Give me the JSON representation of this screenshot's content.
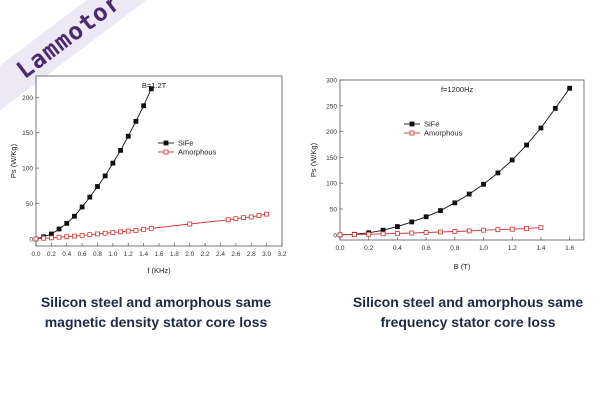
{
  "brand": {
    "watermark": "Lammotor",
    "color": "#4a2c6e"
  },
  "captions": {
    "left": "Silicon steel and amorphous same magnetic density stator core loss",
    "right": "Silicon steel and amorphous same frequency stator core loss"
  },
  "chart_data": [
    {
      "type": "line",
      "title": "B=1.2T",
      "xlabel": "f  (KHz)",
      "ylabel": "Ps  (W/Kg)",
      "xlim": [
        0,
        3.2
      ],
      "ylim": [
        -10,
        230
      ],
      "xticks": [
        0.0,
        0.2,
        0.4,
        0.6,
        0.8,
        1.0,
        1.2,
        1.4,
        1.6,
        1.8,
        2.0,
        2.2,
        2.4,
        2.6,
        2.8,
        3.0,
        3.2
      ],
      "yticks": [
        0,
        50,
        100,
        150,
        200
      ],
      "ytick_labels": [
        "0",
        "50",
        "100",
        "150",
        "200"
      ],
      "legend": "center-right",
      "grid": false,
      "series": [
        {
          "name": "SiFe",
          "marker": "square-filled",
          "color": "#111111",
          "x": [
            0.0,
            0.1,
            0.2,
            0.3,
            0.4,
            0.5,
            0.6,
            0.7,
            0.8,
            0.9,
            1.0,
            1.1,
            1.2,
            1.3,
            1.4,
            1.5
          ],
          "y": [
            0,
            3,
            7,
            14,
            22,
            32,
            45,
            59,
            74,
            89,
            107,
            125,
            145,
            166,
            188,
            212
          ]
        },
        {
          "name": "Amorphous",
          "marker": "square-open",
          "color": "#cc3333",
          "x": [
            0.0,
            0.1,
            0.2,
            0.3,
            0.4,
            0.5,
            0.6,
            0.7,
            0.8,
            0.9,
            1.0,
            1.1,
            1.2,
            1.3,
            1.4,
            1.5,
            2.0,
            2.5,
            2.6,
            2.7,
            2.8,
            2.9,
            3.0
          ],
          "y": [
            0,
            1,
            1.5,
            2.5,
            3,
            4,
            5,
            6,
            7,
            8,
            9,
            10,
            11,
            12,
            13.5,
            15,
            21,
            27,
            28.5,
            30,
            31,
            33,
            35
          ]
        }
      ]
    },
    {
      "type": "line",
      "title": "f=1200Hz",
      "xlabel": "B  (T)",
      "ylabel": "Ps  (W/Kg)",
      "xlim": [
        0,
        1.7
      ],
      "ylim": [
        -10,
        300
      ],
      "xticks": [
        0.0,
        0.2,
        0.4,
        0.6,
        0.8,
        1.0,
        1.2,
        1.4,
        1.6
      ],
      "yticks": [
        0,
        50,
        100,
        150,
        200,
        250,
        300
      ],
      "legend": "center-right",
      "grid": false,
      "series": [
        {
          "name": "SiFe",
          "marker": "square-filled",
          "color": "#111111",
          "x": [
            0.0,
            0.1,
            0.2,
            0.3,
            0.4,
            0.5,
            0.6,
            0.7,
            0.8,
            0.9,
            1.0,
            1.1,
            1.2,
            1.3,
            1.4,
            1.5,
            1.6
          ],
          "y": [
            0,
            1,
            4,
            9,
            16,
            25,
            35,
            47,
            62,
            79,
            98,
            120,
            145,
            174,
            207,
            245,
            284
          ]
        },
        {
          "name": "Amorphous",
          "marker": "square-open",
          "color": "#cc3333",
          "x": [
            0.0,
            0.1,
            0.2,
            0.3,
            0.4,
            0.5,
            0.6,
            0.7,
            0.8,
            0.9,
            1.0,
            1.1,
            1.2,
            1.3,
            1.4
          ],
          "y": [
            0,
            0.5,
            1,
            2,
            2.5,
            3.5,
            4.5,
            5.5,
            6.5,
            7.5,
            9,
            10,
            11,
            12.5,
            14
          ]
        }
      ]
    }
  ]
}
